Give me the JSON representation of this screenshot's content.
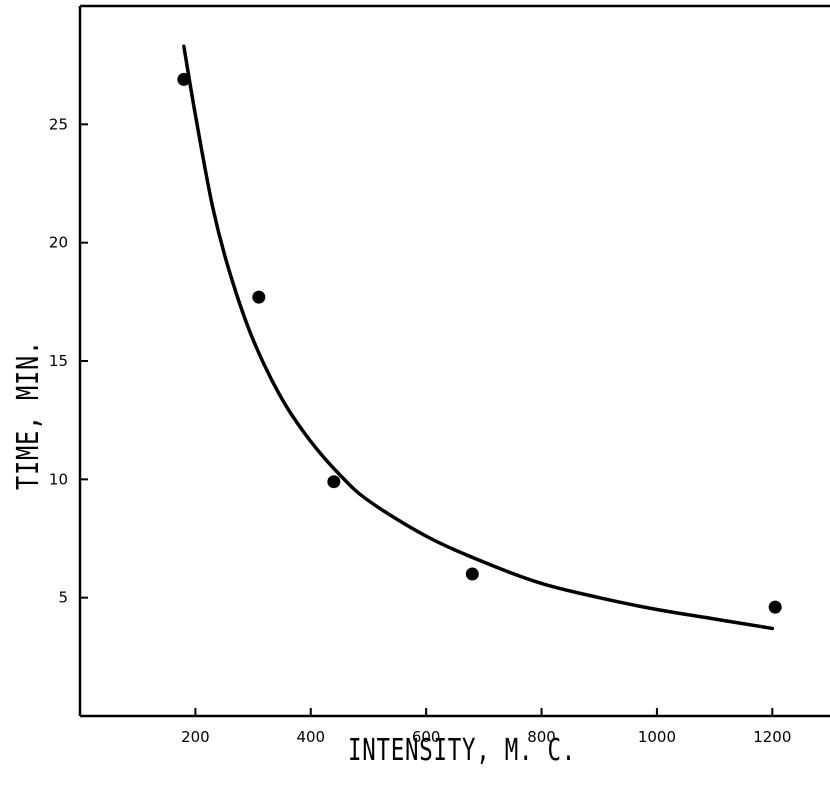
{
  "chart_data": {
    "type": "scatter",
    "title": "",
    "xlabel": "INTENSITY, M. C.",
    "ylabel": "TIME, MIN.",
    "xlim": [
      0,
      1300
    ],
    "ylim": [
      0,
      30
    ],
    "x_ticks": [
      200,
      400,
      600,
      800,
      1000,
      1200
    ],
    "x_tick_labels": [
      "200",
      "400",
      "600",
      "800",
      "1000",
      "1200"
    ],
    "y_ticks": [
      5,
      10,
      15,
      20,
      25
    ],
    "y_tick_labels": [
      "5",
      "10",
      "15",
      "20",
      "25"
    ],
    "grid": false,
    "series": [
      {
        "kind": "points",
        "x": [
          180,
          310,
          440,
          680,
          1205
        ],
        "y": [
          26.9,
          17.7,
          9.9,
          6.0,
          4.6
        ]
      },
      {
        "kind": "fitted-curve",
        "x": [
          180,
          200,
          230,
          260,
          300,
          350,
          400,
          450,
          500,
          600,
          700,
          800,
          900,
          1000,
          1100,
          1200
        ],
        "y": [
          28.3,
          25.4,
          21.5,
          18.7,
          15.9,
          13.4,
          11.6,
          10.2,
          9.1,
          7.6,
          6.5,
          5.6,
          5.0,
          4.5,
          4.1,
          3.7
        ]
      }
    ]
  }
}
